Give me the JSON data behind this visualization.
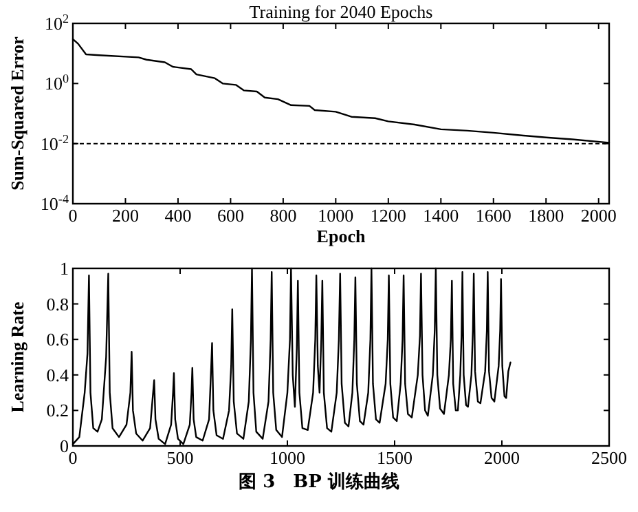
{
  "chart_data": [
    {
      "type": "line",
      "title": "Training for 2040 Epochs",
      "xlabel": "Epoch",
      "ylabel": "Sum-Squared Error",
      "log": "y",
      "grid": false,
      "marker": "none",
      "line_style": "solid",
      "xlim": [
        0,
        2040
      ],
      "xticks": [
        0,
        200,
        400,
        600,
        800,
        1000,
        1200,
        1400,
        1600,
        1800,
        2000
      ],
      "ylim": [
        0.0001,
        100
      ],
      "yticks": [
        {
          "value": 0.0001,
          "label": "10$^{-4}$"
        },
        {
          "value": 0.01,
          "label": "10$^{-2}$"
        },
        {
          "value": 1,
          "label": "10$^{0}$"
        },
        {
          "value": 100,
          "label": "10$^{2}$"
        }
      ],
      "ref_lines": [
        {
          "axis": "y",
          "value": 0.01,
          "line_style": "dashed",
          "color": "#000000"
        }
      ],
      "series": [
        {
          "color": "#000000",
          "x": [
            0,
            20,
            50,
            100,
            250,
            280,
            350,
            380,
            450,
            470,
            540,
            570,
            620,
            650,
            700,
            730,
            780,
            830,
            900,
            920,
            1000,
            1060,
            1150,
            1200,
            1300,
            1400,
            1500,
            1600,
            1700,
            1800,
            1900,
            2040
          ],
          "values": [
            30,
            21,
            9.3,
            8.7,
            7.4,
            6.2,
            5.1,
            3.6,
            3.0,
            2.0,
            1.5,
            1.0,
            0.9,
            0.59,
            0.54,
            0.34,
            0.3,
            0.19,
            0.18,
            0.13,
            0.115,
            0.078,
            0.07,
            0.055,
            0.043,
            0.03,
            0.027,
            0.023,
            0.019,
            0.016,
            0.0138,
            0.0107
          ]
        }
      ]
    },
    {
      "type": "line",
      "ylabel": "Learning Rate",
      "grid": false,
      "marker": "none",
      "line_style": "solid",
      "xlim": [
        0,
        2500
      ],
      "xticks": [
        0,
        500,
        1000,
        1500,
        2000,
        2500
      ],
      "ylim": [
        0,
        1
      ],
      "yticks": [
        0,
        0.2,
        0.4,
        0.6,
        0.8,
        1
      ],
      "annotations": [
        "图 3　BP 训练曲线"
      ],
      "series": [
        {
          "color": "#000000",
          "x": [
            0,
            30,
            55,
            68,
            75,
            82,
            95,
            115,
            135,
            155,
            165,
            172,
            185,
            215,
            250,
            268,
            274,
            280,
            295,
            325,
            360,
            374,
            379,
            385,
            400,
            430,
            458,
            467,
            471,
            477,
            490,
            515,
            545,
            553,
            557,
            563,
            575,
            605,
            635,
            645,
            649,
            655,
            670,
            700,
            728,
            738,
            743,
            750,
            765,
            795,
            820,
            830,
            835,
            842,
            855,
            885,
            912,
            922,
            927,
            934,
            948,
            975,
            1000,
            1012,
            1017,
            1025,
            1035,
            1044,
            1049,
            1056,
            1070,
            1095,
            1120,
            1130,
            1135,
            1142,
            1150,
            1158,
            1163,
            1170,
            1185,
            1205,
            1230,
            1240,
            1246,
            1253,
            1268,
            1285,
            1303,
            1312,
            1317,
            1324,
            1338,
            1355,
            1377,
            1387,
            1392,
            1399,
            1413,
            1430,
            1458,
            1468,
            1473,
            1480,
            1493,
            1510,
            1528,
            1537,
            1542,
            1549,
            1562,
            1580,
            1608,
            1618,
            1623,
            1630,
            1642,
            1655,
            1678,
            1687,
            1692,
            1699,
            1712,
            1730,
            1753,
            1762,
            1767,
            1773,
            1785,
            1795,
            1806,
            1812,
            1816,
            1822,
            1833,
            1842,
            1858,
            1865,
            1869,
            1875,
            1888,
            1900,
            1922,
            1930,
            1934,
            1940,
            1952,
            1965,
            1985,
            1992,
            1996,
            2002,
            2012,
            2020,
            2030,
            2040
          ],
          "values": [
            0.01,
            0.05,
            0.3,
            0.52,
            0.96,
            0.3,
            0.1,
            0.08,
            0.15,
            0.5,
            0.97,
            0.3,
            0.1,
            0.05,
            0.12,
            0.3,
            0.53,
            0.2,
            0.07,
            0.03,
            0.1,
            0.3,
            0.37,
            0.15,
            0.04,
            0.01,
            0.12,
            0.3,
            0.41,
            0.15,
            0.04,
            0.01,
            0.12,
            0.3,
            0.44,
            0.15,
            0.05,
            0.03,
            0.15,
            0.45,
            0.58,
            0.2,
            0.06,
            0.04,
            0.2,
            0.45,
            0.77,
            0.25,
            0.07,
            0.04,
            0.25,
            0.6,
            1.0,
            0.3,
            0.08,
            0.04,
            0.25,
            0.6,
            0.98,
            0.3,
            0.09,
            0.05,
            0.3,
            0.6,
            1.0,
            0.4,
            0.22,
            0.55,
            0.93,
            0.3,
            0.1,
            0.09,
            0.3,
            0.6,
            0.96,
            0.45,
            0.3,
            0.6,
            0.93,
            0.3,
            0.1,
            0.08,
            0.3,
            0.6,
            0.97,
            0.35,
            0.13,
            0.11,
            0.3,
            0.6,
            0.95,
            0.35,
            0.14,
            0.12,
            0.3,
            0.6,
            1.0,
            0.35,
            0.15,
            0.13,
            0.35,
            0.6,
            0.96,
            0.35,
            0.16,
            0.14,
            0.35,
            0.6,
            0.96,
            0.35,
            0.18,
            0.16,
            0.4,
            0.62,
            0.97,
            0.4,
            0.2,
            0.17,
            0.4,
            0.65,
            1.0,
            0.4,
            0.21,
            0.18,
            0.4,
            0.6,
            0.93,
            0.35,
            0.2,
            0.2,
            0.4,
            0.62,
            0.98,
            0.4,
            0.23,
            0.22,
            0.4,
            0.65,
            0.97,
            0.42,
            0.25,
            0.24,
            0.42,
            0.65,
            0.98,
            0.42,
            0.27,
            0.25,
            0.45,
            0.65,
            0.94,
            0.45,
            0.28,
            0.27,
            0.42,
            0.47
          ]
        }
      ]
    }
  ]
}
